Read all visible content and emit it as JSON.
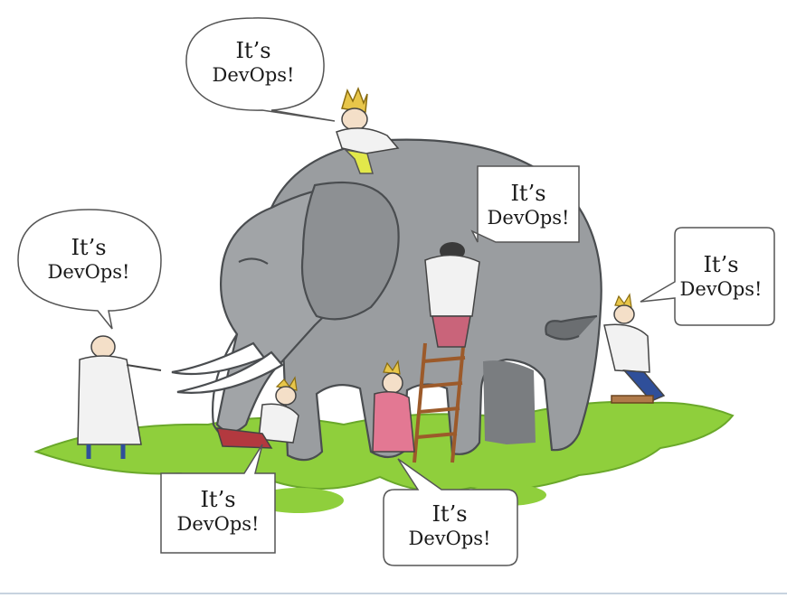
{
  "bubbles": {
    "top": {
      "line1": "It’s",
      "line2": "DevOps!"
    },
    "left": {
      "line1": "It’s",
      "line2": "DevOps!"
    },
    "ladder": {
      "line1": "It’s",
      "line2": "DevOps!"
    },
    "right": {
      "line1": "It’s",
      "line2": "DevOps!"
    },
    "bottom_left": {
      "line1": "It’s",
      "line2": "DevOps!"
    },
    "bottom_right": {
      "line1": "It’s",
      "line2": "DevOps!"
    }
  },
  "colors": {
    "elephant": "#9a9da0",
    "grass": "#8fcf3c",
    "coat": "#f2f2f2",
    "crown": "#e8c64a"
  }
}
